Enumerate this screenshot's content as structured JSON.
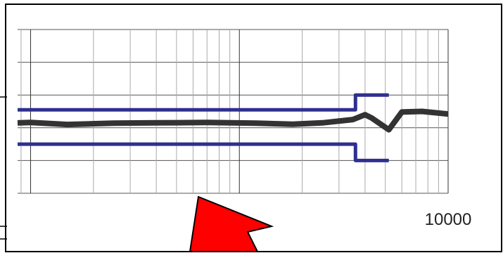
{
  "chart_data": {
    "type": "line",
    "x_scale": "log",
    "xlim": [
      1,
      10000
    ],
    "ylim": [
      0,
      5
    ],
    "grid": true,
    "x_tick_labels": [
      {
        "value": 10000,
        "label": "10000"
      }
    ],
    "series": [
      {
        "role": "measured",
        "color": "#333333",
        "x": [
          1,
          3,
          10,
          30,
          60,
          100,
          150,
          250,
          400,
          700,
          1200,
          1800,
          2500,
          3500,
          4000,
          4300,
          5200,
          6000,
          7500,
          10000
        ],
        "y": [
          2.07,
          2.08,
          2.09,
          2.1,
          2.12,
          2.16,
          2.1,
          2.14,
          2.15,
          2.16,
          2.14,
          2.11,
          2.15,
          2.25,
          2.4,
          2.3,
          1.94,
          2.48,
          2.5,
          2.42
        ]
      },
      {
        "role": "upper-limit",
        "color": "#2f2f8f",
        "x": [
          1,
          3600,
          3600,
          5200
        ],
        "y": [
          2.55,
          2.55,
          3.0,
          3.0
        ]
      },
      {
        "role": "lower-limit",
        "color": "#2f2f8f",
        "x": [
          1,
          3600,
          3600,
          5200
        ],
        "y": [
          1.5,
          1.5,
          1.0,
          1.0
        ]
      }
    ]
  },
  "annotation": {
    "type": "arrow",
    "color": "#ff0000"
  }
}
